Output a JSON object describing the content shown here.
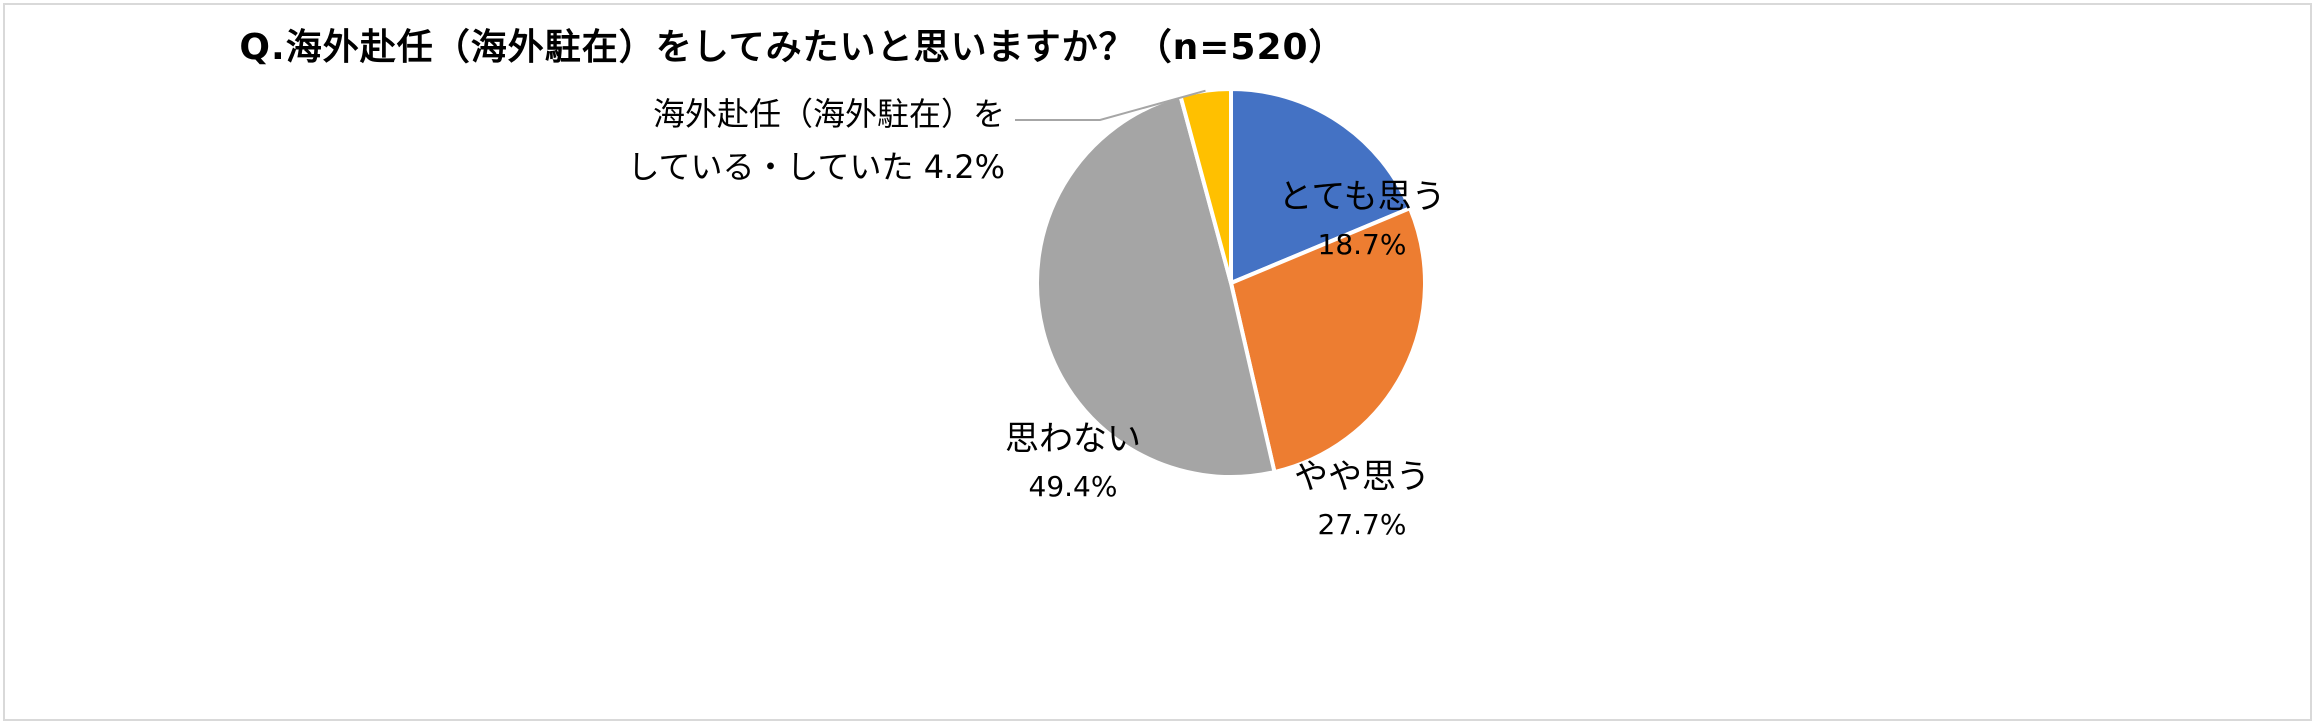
{
  "chart_data": {
    "type": "pie",
    "title": "Q.海外赴任（海外駐在）をしてみたいと思いますか？（n=520）",
    "start_angle_deg": 0,
    "direction": "clockwise",
    "slices": [
      {
        "label": "とても思う",
        "value": 18.7,
        "value_label": "18.7%",
        "color": "#4472C4"
      },
      {
        "label": "やや思う",
        "value": 27.7,
        "value_label": "27.7%",
        "color": "#ED7D31"
      },
      {
        "label": "思わない",
        "value": 49.4,
        "value_label": "49.4%",
        "color": "#A5A5A5"
      },
      {
        "label": "海外赴任（海外駐在）をしている・していた",
        "value": 4.2,
        "value_label": "4.2%",
        "color": "#FFC000",
        "label_lines": [
          "海外赴任（海外駐在）を",
          "している・していた 4.2%"
        ]
      }
    ]
  }
}
